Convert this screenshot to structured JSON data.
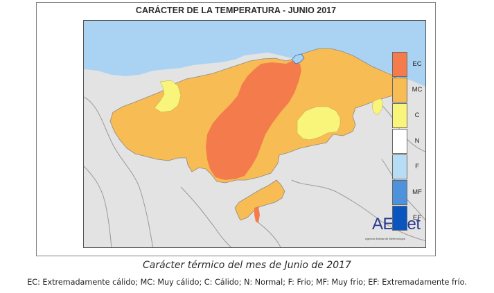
{
  "map": {
    "title": "CARÁCTER DE LA TEMPERATURA - JUNIO 2017",
    "colors": {
      "sea": "#aad3f3",
      "outside_land": "#e3e3e3",
      "boundaries": "#9a9a9a"
    },
    "categories": [
      {
        "code": "EC",
        "color": "#f47c4c"
      },
      {
        "code": "MC",
        "color": "#f7bc53"
      },
      {
        "code": "C",
        "color": "#f9f57a"
      },
      {
        "code": "N",
        "color": "#ffffff"
      },
      {
        "code": "F",
        "color": "#b7ddf6"
      },
      {
        "code": "MF",
        "color": "#4e92db"
      },
      {
        "code": "EF",
        "color": "#0b55bf"
      }
    ],
    "logo": {
      "text": "AEMet",
      "subtext": "Agencia Estatal de Meteorología"
    }
  },
  "caption": "Carácter térmico del mes de Junio de 2017",
  "footnote": "EC: Extremadamente cálido; MC: Muy cálido; C: Cálido; N: Normal; F: Frío; MF: Muy frío; EF: Extremadamente frío."
}
